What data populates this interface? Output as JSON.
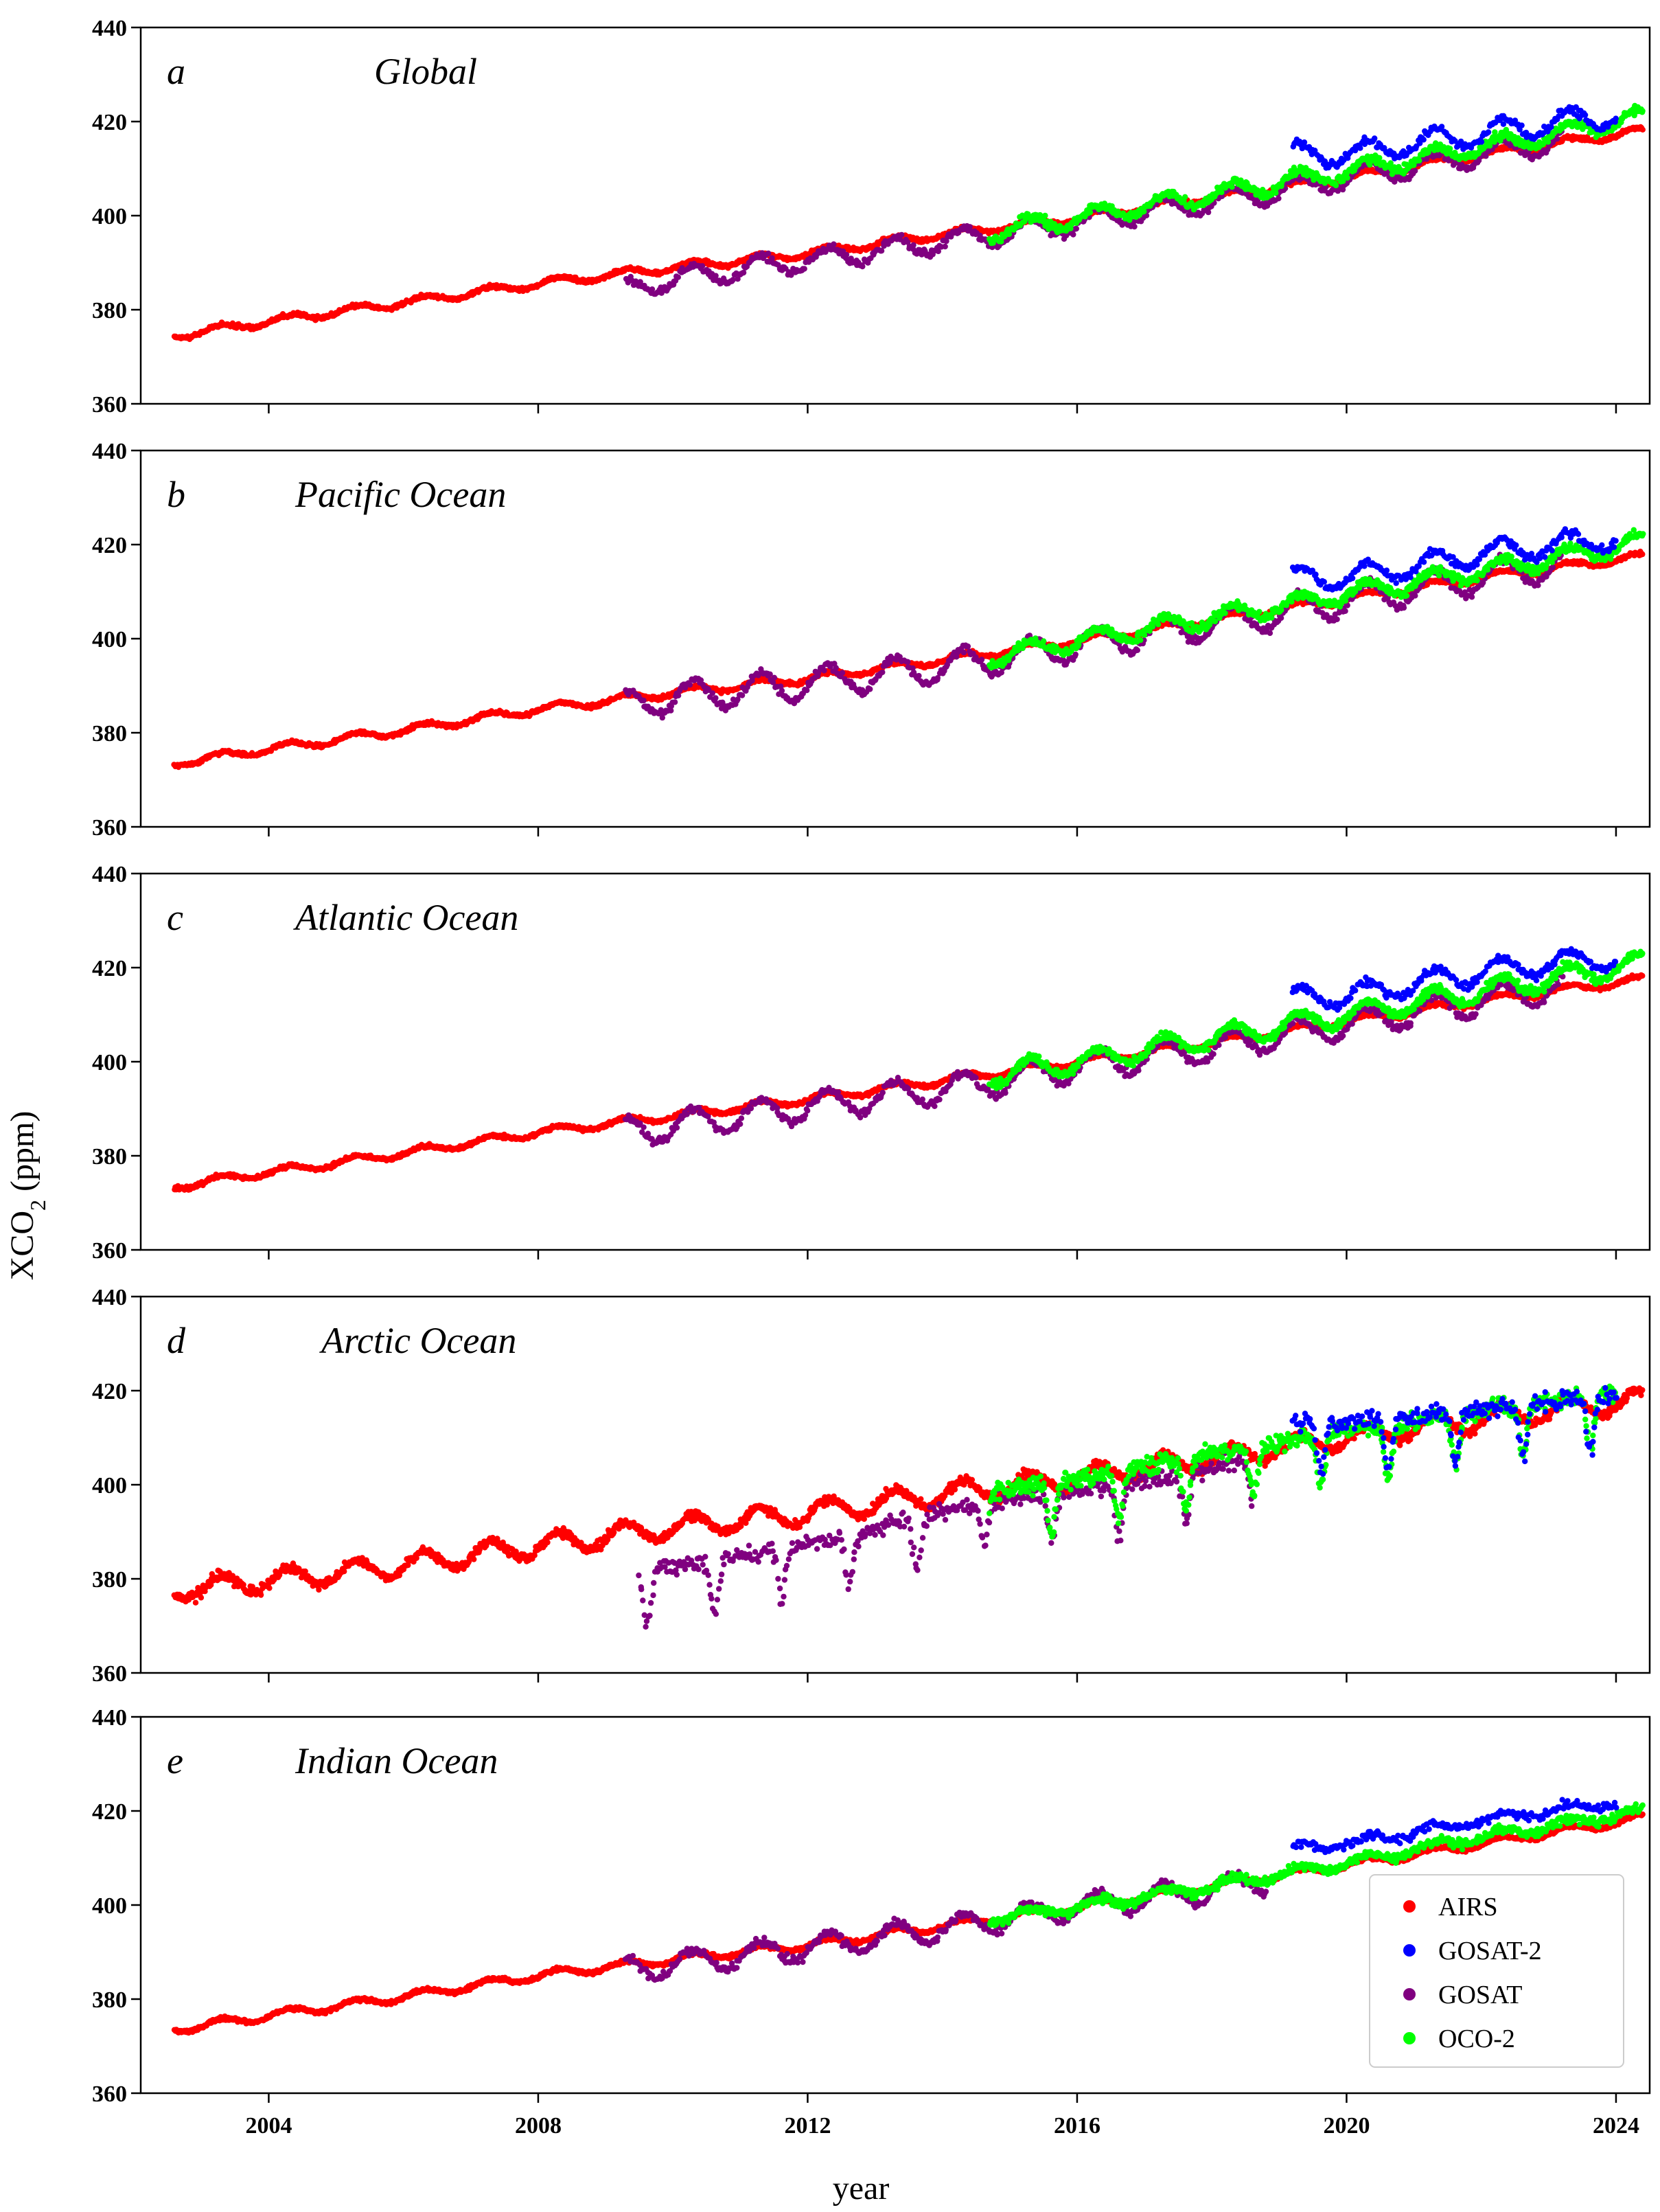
{
  "chart_data": {
    "type": "scatter",
    "shared_x": {
      "label": "year",
      "range": [
        2002.1,
        2024.5
      ],
      "ticks": [
        2004,
        2008,
        2012,
        2016,
        2020,
        2024
      ],
      "tick_labels": [
        "2004",
        "2008",
        "2012",
        "2016",
        "2020",
        "2024"
      ]
    },
    "shared_y": {
      "label_main": "XCO",
      "label_sub": "2",
      "label_unit": " (ppm)",
      "range": [
        360,
        440
      ],
      "ticks": [
        360,
        380,
        400,
        420,
        440
      ],
      "tick_labels": [
        "360",
        "380",
        "400",
        "420",
        "440"
      ]
    },
    "series_styles": [
      {
        "name": "AIRS",
        "color": "#ff0000"
      },
      {
        "name": "GOSAT-2",
        "color": "#0000ff"
      },
      {
        "name": "GOSAT",
        "color": "#800080"
      },
      {
        "name": "OCO-2",
        "color": "#00ff00"
      }
    ],
    "legend": {
      "panel": "e",
      "placement": "bottom-right",
      "entries": [
        "AIRS",
        "GOSAT-2",
        "GOSAT",
        "OCO-2"
      ]
    },
    "panels": [
      {
        "letter": "a",
        "title": "Global",
        "series": {
          "AIRS": {
            "x": [
              2002.6,
              2004.0,
              2006.0,
              2008.0,
              2010.0,
              2012.0,
              2014.0,
              2016.0,
              2018.0,
              2020.0,
              2022.0,
              2024.4
            ],
            "y": [
              374.5,
              377.5,
              381.5,
              385.5,
              389.0,
              392.0,
              396.0,
              399.5,
              404.0,
              408.0,
              413.0,
              418.0
            ],
            "seasonal_amplitude": 0.8
          },
          "GOSAT": {
            "x": [
              2009.3,
              2010.0,
              2012.0,
              2014.0,
              2016.0,
              2018.0,
              2020.0,
              2022.0,
              2023.2
            ],
            "y": [
              384.0,
              386.5,
              390.5,
              394.5,
              398.5,
              403.0,
              408.0,
              413.0,
              416.0
            ],
            "seasonal_amplitude": 2.3
          },
          "OCO-2": {
            "x": [
              2014.7,
              2016.0,
              2018.0,
              2020.0,
              2022.0,
              2024.4
            ],
            "y": [
              396.5,
              399.5,
              404.5,
              409.5,
              414.5,
              421.0
            ],
            "seasonal_amplitude": 1.8
          },
          "GOSAT-2": {
            "x": [
              2019.2,
              2020.0,
              2022.0,
              2024.0
            ],
            "y": [
              413.0,
              413.0,
              417.5,
              421.5
            ],
            "seasonal_amplitude": 2.3
          }
        }
      },
      {
        "letter": "b",
        "title": "Pacific Ocean",
        "series": {
          "AIRS": {
            "x": [
              2002.6,
              2004.0,
              2006.0,
              2008.0,
              2010.0,
              2012.0,
              2014.0,
              2016.0,
              2018.0,
              2020.0,
              2022.0,
              2024.4
            ],
            "y": [
              373.5,
              376.5,
              380.5,
              385.0,
              388.5,
              391.5,
              395.5,
              399.5,
              404.0,
              408.5,
              413.0,
              417.5
            ],
            "seasonal_amplitude": 0.8
          },
          "GOSAT": {
            "x": [
              2009.3,
              2010.0,
              2012.0,
              2014.0,
              2016.0,
              2018.0,
              2020.0,
              2022.0,
              2023.2
            ],
            "y": [
              386.0,
              387.5,
              390.5,
              394.0,
              398.5,
              403.0,
              408.0,
              413.0,
              416.0
            ],
            "seasonal_amplitude": 3.2
          },
          "OCO-2": {
            "x": [
              2014.7,
              2016.0,
              2018.0,
              2020.0,
              2022.0,
              2024.4
            ],
            "y": [
              396.0,
              399.5,
              404.5,
              409.5,
              414.5,
              420.5
            ],
            "seasonal_amplitude": 1.8
          },
          "GOSAT-2": {
            "x": [
              2019.2,
              2020.0,
              2022.0,
              2024.0
            ],
            "y": [
              413.0,
              413.0,
              418.0,
              421.5
            ],
            "seasonal_amplitude": 2.3
          }
        }
      },
      {
        "letter": "c",
        "title": "Atlantic Ocean",
        "series": {
          "AIRS": {
            "x": [
              2002.6,
              2004.0,
              2006.0,
              2008.0,
              2010.0,
              2012.0,
              2014.0,
              2016.0,
              2018.0,
              2020.0,
              2022.0,
              2024.4
            ],
            "y": [
              373.5,
              376.5,
              380.5,
              385.0,
              388.5,
              392.0,
              396.0,
              400.0,
              404.0,
              408.5,
              413.0,
              417.5
            ],
            "seasonal_amplitude": 0.8
          },
          "GOSAT": {
            "x": [
              2009.3,
              2010.0,
              2012.0,
              2014.0,
              2016.0,
              2018.0,
              2020.0,
              2022.0,
              2023.2
            ],
            "y": [
              385.0,
              386.5,
              390.5,
              394.0,
              399.0,
              403.0,
              408.0,
              413.0,
              416.0
            ],
            "seasonal_amplitude": 3.0
          },
          "OCO-2": {
            "x": [
              2014.7,
              2016.0,
              2018.0,
              2020.0,
              2022.0,
              2024.4
            ],
            "y": [
              397.0,
              400.0,
              405.0,
              410.0,
              415.0,
              421.0
            ],
            "seasonal_amplitude": 2.2
          },
          "GOSAT-2": {
            "x": [
              2019.2,
              2020.0,
              2022.0,
              2024.0
            ],
            "y": [
              413.5,
              414.0,
              419.0,
              422.5
            ],
            "seasonal_amplitude": 2.3
          }
        }
      },
      {
        "letter": "d",
        "title": "Arctic Ocean",
        "series": {
          "AIRS": {
            "x": [
              2002.6,
              2004.0,
              2006.0,
              2008.0,
              2010.0,
              2012.0,
              2014.0,
              2016.0,
              2018.0,
              2020.0,
              2022.0,
              2024.4
            ],
            "y": [
              377.5,
              379.5,
              383.0,
              387.0,
              391.0,
              394.0,
              398.0,
              401.5,
              405.5,
              410.0,
              414.0,
              418.0
            ],
            "seasonal_amplitude": 2.2
          },
          "GOSAT": {
            "x": [
              2009.5,
              2010.5,
              2011.5,
              2012.5,
              2013.5,
              2014.5,
              2015.5,
              2016.5,
              2017.6,
              2018.6
            ],
            "y": [
              379.0,
              381.0,
              384.0,
              386.0,
              390.0,
              394.0,
              396.0,
              397.0,
              400.0,
              403.0
            ],
            "seasonal_amplitude": 6.0
          },
          "OCO-2": {
            "x": [
              2014.7,
              2016.0,
              2018.0,
              2020.0,
              2022.0,
              2024.0
            ],
            "y": [
              396.0,
              399.0,
              404.0,
              409.0,
              413.5,
              417.0
            ],
            "seasonal_amplitude": 6.0
          },
          "GOSAT-2": {
            "x": [
              2019.2,
              2020.0,
              2022.0,
              2024.0
            ],
            "y": [
              411.0,
              411.0,
              413.5,
              416.5
            ],
            "seasonal_amplitude": 6.0
          }
        }
      },
      {
        "letter": "e",
        "title": "Indian Ocean",
        "series": {
          "AIRS": {
            "x": [
              2002.6,
              2004.0,
              2006.0,
              2008.0,
              2010.0,
              2012.0,
              2014.0,
              2016.0,
              2018.0,
              2020.0,
              2022.0,
              2024.4
            ],
            "y": [
              373.5,
              376.5,
              380.5,
              385.0,
              388.5,
              391.5,
              395.5,
              399.5,
              404.0,
              408.5,
              413.0,
              418.5
            ],
            "seasonal_amplitude": 0.8
          },
          "GOSAT": {
            "x": [
              2009.3,
              2010.0,
              2012.0,
              2014.0,
              2016.0,
              2018.0,
              2018.8
            ],
            "y": [
              386.0,
              387.5,
              391.0,
              395.0,
              399.5,
              403.5,
              405.0
            ],
            "seasonal_amplitude": 2.5
          },
          "OCO-2": {
            "x": [
              2014.7,
              2016.0,
              2018.0,
              2020.0,
              2022.0,
              2024.4
            ],
            "y": [
              397.0,
              399.5,
              404.0,
              409.0,
              414.5,
              420.0
            ],
            "seasonal_amplitude": 1.0
          },
          "GOSAT-2": {
            "x": [
              2019.2,
              2020.0,
              2022.0,
              2024.0
            ],
            "y": [
              412.0,
              413.0,
              418.0,
              422.0
            ],
            "seasonal_amplitude": 1.0
          }
        }
      }
    ]
  }
}
